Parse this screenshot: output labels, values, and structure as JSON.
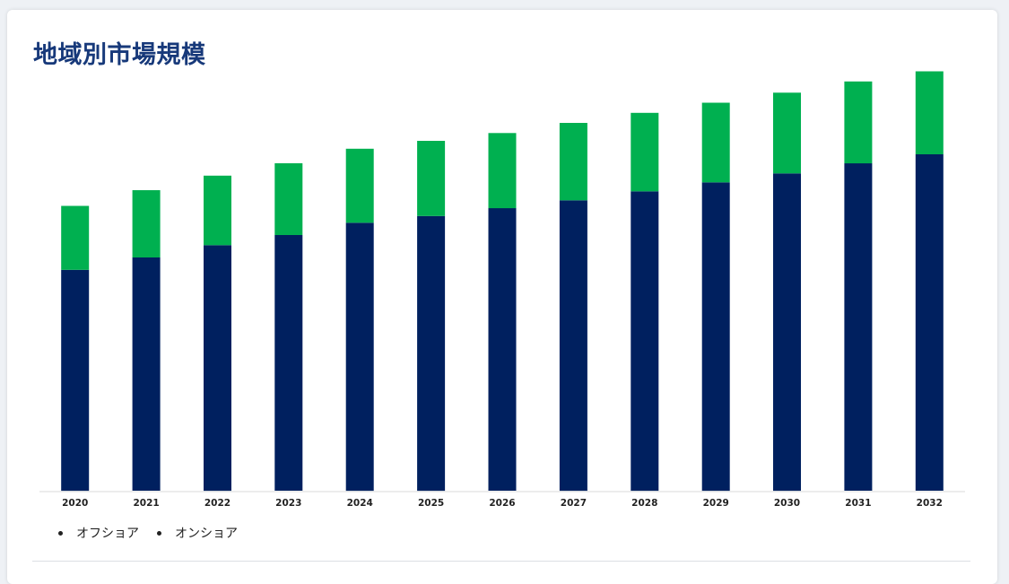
{
  "page": {
    "title": "地域別市場規模"
  },
  "chart_data": {
    "type": "bar",
    "stacked": true,
    "categories": [
      "2020",
      "2021",
      "2022",
      "2023",
      "2024",
      "2025",
      "2026",
      "2027",
      "2028",
      "2029",
      "2030",
      "2031",
      "2032"
    ],
    "series": [
      {
        "name": "オフショア",
        "color": "#00205f",
        "values": [
          197,
          208,
          219,
          228,
          239,
          245,
          252,
          259,
          267,
          275,
          283,
          292,
          300
        ]
      },
      {
        "name": "オンショア",
        "color": "#00b050",
        "values": [
          57,
          60,
          62,
          64,
          66,
          67,
          67,
          69,
          70,
          71,
          72,
          73,
          74
        ]
      }
    ],
    "ylim": [
      0,
      400
    ],
    "grid": false,
    "legend": "bottom-left",
    "baseline_color": "#d9d9d9"
  }
}
